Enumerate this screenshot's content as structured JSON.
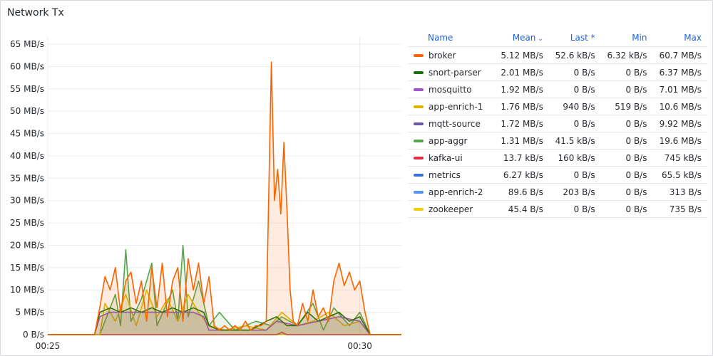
{
  "panel": {
    "title": "Network Tx"
  },
  "legend": {
    "headers": {
      "name": "Name",
      "mean": "Mean",
      "mean_sort_icon": "chevron-down-icon",
      "last": "Last *",
      "min": "Min",
      "max": "Max"
    },
    "rows": [
      {
        "name": "broker",
        "color": "#fa6400",
        "mean": "5.12 MB/s",
        "last": "52.6 kB/s",
        "min": "6.32 kB/s",
        "max": "60.7 MB/s"
      },
      {
        "name": "snort-parser",
        "color": "#1a7311",
        "mean": "2.01 MB/s",
        "last": "0 B/s",
        "min": "0 B/s",
        "max": "6.37 MB/s"
      },
      {
        "name": "mosquitto",
        "color": "#a352cc",
        "mean": "1.92 MB/s",
        "last": "0 B/s",
        "min": "0 B/s",
        "max": "7.01 MB/s"
      },
      {
        "name": "app-enrich-1",
        "color": "#e0b400",
        "mean": "1.76 MB/s",
        "last": "940 B/s",
        "min": "519 B/s",
        "max": "10.6 MB/s"
      },
      {
        "name": "mqtt-source",
        "color": "#6e56a8",
        "mean": "1.72 MB/s",
        "last": "0 B/s",
        "min": "0 B/s",
        "max": "9.92 MB/s"
      },
      {
        "name": "app-aggr",
        "color": "#56a64b",
        "mean": "1.31 MB/s",
        "last": "41.5 kB/s",
        "min": "0 B/s",
        "max": "19.6 MB/s"
      },
      {
        "name": "kafka-ui",
        "color": "#e02f44",
        "mean": "13.7 kB/s",
        "last": "160 kB/s",
        "min": "0 B/s",
        "max": "745 kB/s"
      },
      {
        "name": "metrics",
        "color": "#3274d9",
        "mean": "6.27 kB/s",
        "last": "0 B/s",
        "min": "0 B/s",
        "max": "65.5 kB/s"
      },
      {
        "name": "app-enrich-2",
        "color": "#5794f2",
        "mean": "89.6 B/s",
        "last": "203 B/s",
        "min": "0 B/s",
        "max": "313 B/s"
      },
      {
        "name": "zookeeper",
        "color": "#f2cc0c",
        "mean": "45.4 B/s",
        "last": "0 B/s",
        "min": "0 B/s",
        "max": "735 B/s"
      }
    ]
  },
  "chart_data": {
    "type": "area",
    "yunit": "MB/s",
    "ylim": [
      0,
      65
    ],
    "yticks": [
      0,
      5,
      10,
      15,
      20,
      25,
      30,
      35,
      40,
      45,
      50,
      55,
      60,
      65
    ],
    "ytick_labels": [
      "0 B/s",
      "5 MB/s",
      "10 MB/s",
      "15 MB/s",
      "20 MB/s",
      "25 MB/s",
      "30 MB/s",
      "35 MB/s",
      "40 MB/s",
      "45 MB/s",
      "50 MB/s",
      "55 MB/s",
      "60 MB/s",
      "65 MB/s"
    ],
    "xlim": [
      "00:25",
      "00:30:40"
    ],
    "xticks": [
      "00:25",
      "00:30"
    ],
    "grid": true,
    "legend_placement": "right",
    "series": [
      {
        "name": "broker",
        "color": "#fa6400",
        "points": [
          [
            "00:25:00",
            0
          ],
          [
            "00:25:45",
            0
          ],
          [
            "00:25:50",
            6
          ],
          [
            "00:25:55",
            13
          ],
          [
            "00:26:00",
            10
          ],
          [
            "00:26:05",
            15
          ],
          [
            "00:26:10",
            5
          ],
          [
            "00:26:15",
            12
          ],
          [
            "00:26:20",
            14
          ],
          [
            "00:26:25",
            7
          ],
          [
            "00:26:30",
            12
          ],
          [
            "00:26:35",
            3
          ],
          [
            "00:26:40",
            15
          ],
          [
            "00:26:45",
            6
          ],
          [
            "00:26:50",
            16
          ],
          [
            "00:26:55",
            4
          ],
          [
            "00:27:00",
            12
          ],
          [
            "00:27:05",
            15
          ],
          [
            "00:27:10",
            3
          ],
          [
            "00:27:15",
            17
          ],
          [
            "00:27:20",
            10
          ],
          [
            "00:27:25",
            16
          ],
          [
            "00:27:30",
            7
          ],
          [
            "00:27:35",
            13
          ],
          [
            "00:27:40",
            2
          ],
          [
            "00:27:45",
            1
          ],
          [
            "00:27:50",
            2
          ],
          [
            "00:27:55",
            1
          ],
          [
            "00:28:00",
            2
          ],
          [
            "00:28:05",
            1
          ],
          [
            "00:28:10",
            3
          ],
          [
            "00:28:15",
            1
          ],
          [
            "00:28:20",
            2
          ],
          [
            "00:28:25",
            2
          ],
          [
            "00:28:30",
            3
          ],
          [
            "00:28:35",
            61
          ],
          [
            "00:28:38",
            30
          ],
          [
            "00:28:41",
            37
          ],
          [
            "00:28:44",
            27
          ],
          [
            "00:28:47",
            43
          ],
          [
            "00:28:50",
            28
          ],
          [
            "00:28:53",
            10
          ],
          [
            "00:28:56",
            3
          ],
          [
            "00:29:00",
            2
          ],
          [
            "00:29:05",
            7
          ],
          [
            "00:29:10",
            3
          ],
          [
            "00:29:15",
            10
          ],
          [
            "00:29:20",
            4
          ],
          [
            "00:29:25",
            6
          ],
          [
            "00:29:30",
            3
          ],
          [
            "00:29:35",
            12
          ],
          [
            "00:29:40",
            16
          ],
          [
            "00:29:45",
            11
          ],
          [
            "00:29:50",
            14
          ],
          [
            "00:29:55",
            10
          ],
          [
            "00:30:00",
            12
          ],
          [
            "00:30:05",
            5
          ],
          [
            "00:30:10",
            0
          ],
          [
            "00:30:15",
            0
          ],
          [
            "00:30:40",
            0
          ]
        ]
      },
      {
        "name": "snort-parser",
        "color": "#1a7311",
        "points": [
          [
            "00:25:00",
            0
          ],
          [
            "00:25:45",
            0
          ],
          [
            "00:25:50",
            5
          ],
          [
            "00:26:00",
            6
          ],
          [
            "00:26:10",
            5
          ],
          [
            "00:26:20",
            6
          ],
          [
            "00:26:30",
            5
          ],
          [
            "00:26:40",
            6
          ],
          [
            "00:26:50",
            5
          ],
          [
            "00:27:00",
            6
          ],
          [
            "00:27:10",
            5
          ],
          [
            "00:27:20",
            6
          ],
          [
            "00:27:30",
            5
          ],
          [
            "00:27:35",
            2
          ],
          [
            "00:27:45",
            1
          ],
          [
            "00:28:00",
            1
          ],
          [
            "00:28:15",
            1
          ],
          [
            "00:28:30",
            3
          ],
          [
            "00:28:40",
            4
          ],
          [
            "00:28:50",
            2
          ],
          [
            "00:29:00",
            2
          ],
          [
            "00:29:10",
            5
          ],
          [
            "00:29:20",
            3
          ],
          [
            "00:29:30",
            4
          ],
          [
            "00:29:40",
            5
          ],
          [
            "00:29:50",
            3
          ],
          [
            "00:30:00",
            4
          ],
          [
            "00:30:05",
            2
          ],
          [
            "00:30:10",
            0
          ],
          [
            "00:30:40",
            0
          ]
        ]
      },
      {
        "name": "mosquitto",
        "color": "#a352cc",
        "points": [
          [
            "00:25:00",
            0
          ],
          [
            "00:25:45",
            0
          ],
          [
            "00:25:50",
            4
          ],
          [
            "00:26:00",
            5
          ],
          [
            "00:26:20",
            5
          ],
          [
            "00:26:40",
            5
          ],
          [
            "00:27:00",
            5
          ],
          [
            "00:27:20",
            5
          ],
          [
            "00:27:30",
            4
          ],
          [
            "00:27:35",
            1
          ],
          [
            "00:28:30",
            1
          ],
          [
            "00:28:40",
            3
          ],
          [
            "00:29:00",
            2
          ],
          [
            "00:29:20",
            3
          ],
          [
            "00:29:40",
            4
          ],
          [
            "00:30:00",
            3
          ],
          [
            "00:30:10",
            0
          ],
          [
            "00:30:40",
            0
          ]
        ]
      },
      {
        "name": "app-enrich-1",
        "color": "#e0b400",
        "points": [
          [
            "00:25:00",
            0
          ],
          [
            "00:25:50",
            0
          ],
          [
            "00:25:55",
            7
          ],
          [
            "00:26:05",
            3
          ],
          [
            "00:26:15",
            9
          ],
          [
            "00:26:25",
            2
          ],
          [
            "00:26:35",
            10
          ],
          [
            "00:26:45",
            4
          ],
          [
            "00:26:55",
            8
          ],
          [
            "00:27:05",
            3
          ],
          [
            "00:27:15",
            9
          ],
          [
            "00:27:25",
            5
          ],
          [
            "00:27:35",
            2
          ],
          [
            "00:27:50",
            1
          ],
          [
            "00:28:10",
            2
          ],
          [
            "00:28:30",
            1
          ],
          [
            "00:28:45",
            5
          ],
          [
            "00:29:00",
            2
          ],
          [
            "00:29:15",
            3
          ],
          [
            "00:29:30",
            5
          ],
          [
            "00:29:45",
            2
          ],
          [
            "00:30:00",
            3
          ],
          [
            "00:30:10",
            0
          ],
          [
            "00:30:40",
            0
          ]
        ]
      },
      {
        "name": "app-aggr",
        "color": "#56a64b",
        "points": [
          [
            "00:25:00",
            0
          ],
          [
            "00:25:50",
            0
          ],
          [
            "00:25:55",
            3
          ],
          [
            "00:26:05",
            9
          ],
          [
            "00:26:10",
            2
          ],
          [
            "00:26:15",
            19
          ],
          [
            "00:26:20",
            3
          ],
          [
            "00:26:30",
            8
          ],
          [
            "00:26:40",
            16
          ],
          [
            "00:26:45",
            2
          ],
          [
            "00:27:00",
            10
          ],
          [
            "00:27:05",
            3
          ],
          [
            "00:27:10",
            20
          ],
          [
            "00:27:15",
            4
          ],
          [
            "00:27:25",
            12
          ],
          [
            "00:27:35",
            2
          ],
          [
            "00:27:45",
            5
          ],
          [
            "00:28:00",
            1
          ],
          [
            "00:28:20",
            3
          ],
          [
            "00:28:35",
            2
          ],
          [
            "00:28:45",
            4
          ],
          [
            "00:29:00",
            2
          ],
          [
            "00:29:15",
            7
          ],
          [
            "00:29:25",
            1
          ],
          [
            "00:29:35",
            6
          ],
          [
            "00:29:50",
            2
          ],
          [
            "00:30:00",
            5
          ],
          [
            "00:30:10",
            0
          ],
          [
            "00:30:40",
            0
          ]
        ]
      },
      {
        "name": "kafka-ui",
        "color": "#e02f44",
        "points": [
          [
            "00:25:00",
            0
          ],
          [
            "00:28:40",
            0
          ],
          [
            "00:28:45",
            0.5
          ],
          [
            "00:28:50",
            0
          ],
          [
            "00:30:40",
            0
          ]
        ]
      },
      {
        "name": "zookeeper",
        "color": "#f2cc0c",
        "points": [
          [
            "00:25:00",
            0
          ],
          [
            "00:30:40",
            0
          ]
        ]
      }
    ]
  }
}
